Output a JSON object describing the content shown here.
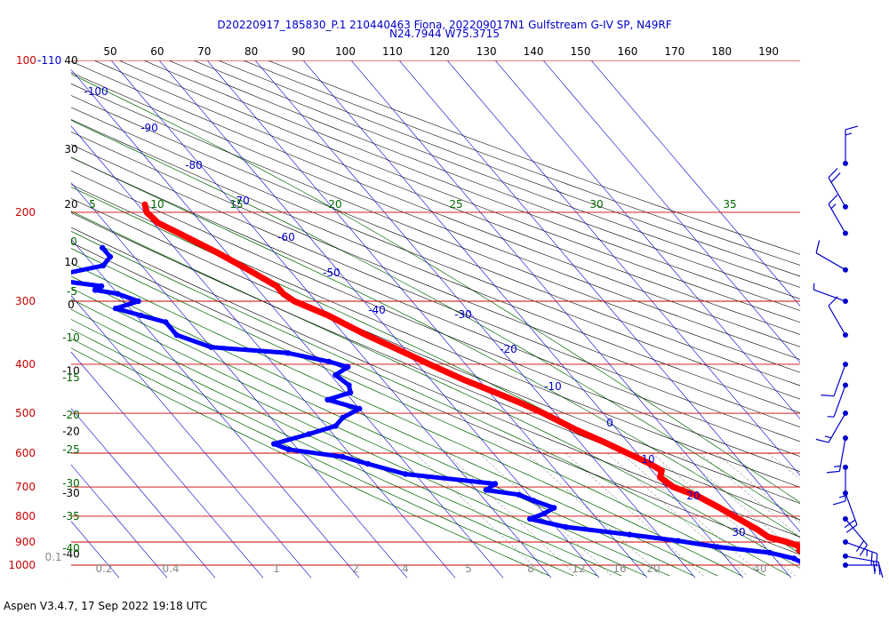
{
  "title_line1": "D20220917_185830_P.1 210440463 Fiona, 202209017N1 Gulfstream G-IV SP, N49RF",
  "title_line2": "N24.7944 W75.3715",
  "footer": "Aspen V3.4.7, 17 Sep 2022  19:18 UTC",
  "colors": {
    "temperature": "#ff0000",
    "dewpoint": "#0000ff",
    "isobar": "#cc0000",
    "isotherm": "#0000cc",
    "dry_adiabat": "#000000",
    "moist_adiabat": "#006600",
    "mixing_ratio": "#999999",
    "wind_barb": "#0000cc"
  },
  "chart_data": {
    "type": "skew-t log-p sounding",
    "pressure_range_hpa": [
      100,
      1000
    ],
    "pressure_levels_labeled": [
      {
        "label": "100-110",
        "p": 100
      },
      {
        "label": "200",
        "p": 200
      },
      {
        "label": "300",
        "p": 300
      },
      {
        "label": "400",
        "p": 400
      },
      {
        "label": "500",
        "p": 500
      },
      {
        "label": "600",
        "p": 600
      },
      {
        "label": "700",
        "p": 700
      },
      {
        "label": "800",
        "p": 800
      },
      {
        "label": "900",
        "p": 900
      },
      {
        "label": "1000",
        "p": 1000
      }
    ],
    "potential_temperature_labels": [
      "50",
      "60",
      "70",
      "80",
      "90",
      "100",
      "110",
      "120",
      "130",
      "140",
      "150",
      "160",
      "170",
      "180",
      "190"
    ],
    "isotherm_labels": [
      "-100",
      "-90",
      "-80",
      "-70",
      "-60",
      "-50",
      "-40",
      "-30",
      "-20",
      "-10",
      "0",
      "10",
      "20",
      "30"
    ],
    "left_axis_labels": [
      {
        "label": "40",
        "p": 100
      },
      {
        "label": "30",
        "p": 150
      },
      {
        "label": "20",
        "p": 193
      },
      {
        "label": "10",
        "p": 251
      },
      {
        "label": "0",
        "p": 305
      },
      {
        "label": "-10",
        "p": 412
      },
      {
        "label": "-20",
        "p": 543
      },
      {
        "label": "-30",
        "p": 720
      },
      {
        "label": "-40",
        "p": 950
      }
    ],
    "moist_adiabat_labels": [
      "5",
      "10",
      "15",
      "20",
      "25",
      "30",
      "35",
      "0",
      "-5",
      "-10",
      "-15",
      "-20",
      "-25",
      "-30",
      "-35",
      "-40"
    ],
    "mixing_ratio_labels": [
      "0.1",
      "0.2",
      "0.4",
      "1",
      "2",
      "4",
      "5",
      "8",
      "12",
      "16",
      "20",
      "40"
    ],
    "temperature_profile": [
      {
        "p": 193,
        "t": -58.5
      },
      {
        "p": 200,
        "t": -59.5
      },
      {
        "p": 210,
        "t": -59.0
      },
      {
        "p": 220,
        "t": -56.5
      },
      {
        "p": 240,
        "t": -52.0
      },
      {
        "p": 260,
        "t": -48.5
      },
      {
        "p": 280,
        "t": -45.5
      },
      {
        "p": 290,
        "t": -45.5
      },
      {
        "p": 300,
        "t": -44.5
      },
      {
        "p": 320,
        "t": -40.0
      },
      {
        "p": 350,
        "t": -35.5
      },
      {
        "p": 380,
        "t": -30.5
      },
      {
        "p": 400,
        "t": -27.5
      },
      {
        "p": 430,
        "t": -23.0
      },
      {
        "p": 460,
        "t": -18.0
      },
      {
        "p": 480,
        "t": -15.0
      },
      {
        "p": 500,
        "t": -12.5
      },
      {
        "p": 540,
        "t": -8.5
      },
      {
        "p": 570,
        "t": -5.0
      },
      {
        "p": 600,
        "t": -2.0
      },
      {
        "p": 630,
        "t": 0.8
      },
      {
        "p": 650,
        "t": 2.0
      },
      {
        "p": 670,
        "t": 0.5
      },
      {
        "p": 700,
        "t": 1.5
      },
      {
        "p": 730,
        "t": 5.0
      },
      {
        "p": 770,
        "t": 7.5
      },
      {
        "p": 810,
        "t": 9.5
      },
      {
        "p": 850,
        "t": 11.5
      },
      {
        "p": 880,
        "t": 12.5
      },
      {
        "p": 900,
        "t": 15.5
      },
      {
        "p": 920,
        "t": 17.5
      },
      {
        "p": 935,
        "t": 16.5
      },
      {
        "p": 955,
        "t": 19.5
      },
      {
        "p": 975,
        "t": 22.5
      },
      {
        "p": 990,
        "t": 25.5
      }
    ],
    "dewpoint_profile": [
      {
        "p": 235,
        "td": -75.0
      },
      {
        "p": 245,
        "td": -75.0
      },
      {
        "p": 255,
        "td": -78.0
      },
      {
        "p": 265,
        "td": -88.0
      },
      {
        "p": 273,
        "td": -90.0
      },
      {
        "p": 280,
        "td": -82.0
      },
      {
        "p": 285,
        "td": -84.0
      },
      {
        "p": 290,
        "td": -80.0
      },
      {
        "p": 300,
        "td": -77.0
      },
      {
        "p": 310,
        "td": -83.0
      },
      {
        "p": 320,
        "td": -79.0
      },
      {
        "p": 330,
        "td": -75.0
      },
      {
        "p": 350,
        "td": -75.0
      },
      {
        "p": 370,
        "td": -70.0
      },
      {
        "p": 380,
        "td": -55.0
      },
      {
        "p": 395,
        "td": -48.0
      },
      {
        "p": 405,
        "td": -45.0
      },
      {
        "p": 420,
        "td": -49.0
      },
      {
        "p": 440,
        "td": -48.0
      },
      {
        "p": 455,
        "td": -49.0
      },
      {
        "p": 470,
        "td": -55.0
      },
      {
        "p": 490,
        "td": -50.0
      },
      {
        "p": 510,
        "td": -55.0
      },
      {
        "p": 530,
        "td": -58.0
      },
      {
        "p": 550,
        "td": -65.0
      },
      {
        "p": 575,
        "td": -74.0
      },
      {
        "p": 590,
        "td": -72.0
      },
      {
        "p": 610,
        "td": -62.0
      },
      {
        "p": 630,
        "td": -58.0
      },
      {
        "p": 660,
        "td": -52.0
      },
      {
        "p": 690,
        "td": -35.0
      },
      {
        "p": 710,
        "td": -38.0
      },
      {
        "p": 725,
        "td": -32.0
      },
      {
        "p": 745,
        "td": -30.0
      },
      {
        "p": 770,
        "td": -27.0
      },
      {
        "p": 790,
        "td": -30.0
      },
      {
        "p": 810,
        "td": -34.0
      },
      {
        "p": 840,
        "td": -28.0
      },
      {
        "p": 870,
        "td": -16.0
      },
      {
        "p": 895,
        "td": -7.0
      },
      {
        "p": 920,
        "td": 0.0
      },
      {
        "p": 945,
        "td": 10.0
      },
      {
        "p": 970,
        "td": 14.0
      },
      {
        "p": 990,
        "td": 15.0
      }
    ],
    "wind_barbs": [
      {
        "p": 160,
        "speed_kt": 15,
        "dir_deg": 360
      },
      {
        "p": 195,
        "speed_kt": 20,
        "dir_deg": 330
      },
      {
        "p": 220,
        "speed_kt": 15,
        "dir_deg": 330
      },
      {
        "p": 260,
        "speed_kt": 10,
        "dir_deg": 300
      },
      {
        "p": 300,
        "speed_kt": 5,
        "dir_deg": 290
      },
      {
        "p": 350,
        "speed_kt": 10,
        "dir_deg": 330
      },
      {
        "p": 400,
        "speed_kt": 10,
        "dir_deg": 200
      },
      {
        "p": 440,
        "speed_kt": 5,
        "dir_deg": 200
      },
      {
        "p": 500,
        "speed_kt": 15,
        "dir_deg": 210
      },
      {
        "p": 560,
        "speed_kt": 15,
        "dir_deg": 190
      },
      {
        "p": 640,
        "speed_kt": 15,
        "dir_deg": 180
      },
      {
        "p": 720,
        "speed_kt": 20,
        "dir_deg": 160
      },
      {
        "p": 810,
        "speed_kt": 20,
        "dir_deg": 140
      },
      {
        "p": 900,
        "speed_kt": 25,
        "dir_deg": 110
      },
      {
        "p": 960,
        "speed_kt": 20,
        "dir_deg": 100
      },
      {
        "p": 1000,
        "speed_kt": 15,
        "dir_deg": 90
      }
    ]
  }
}
